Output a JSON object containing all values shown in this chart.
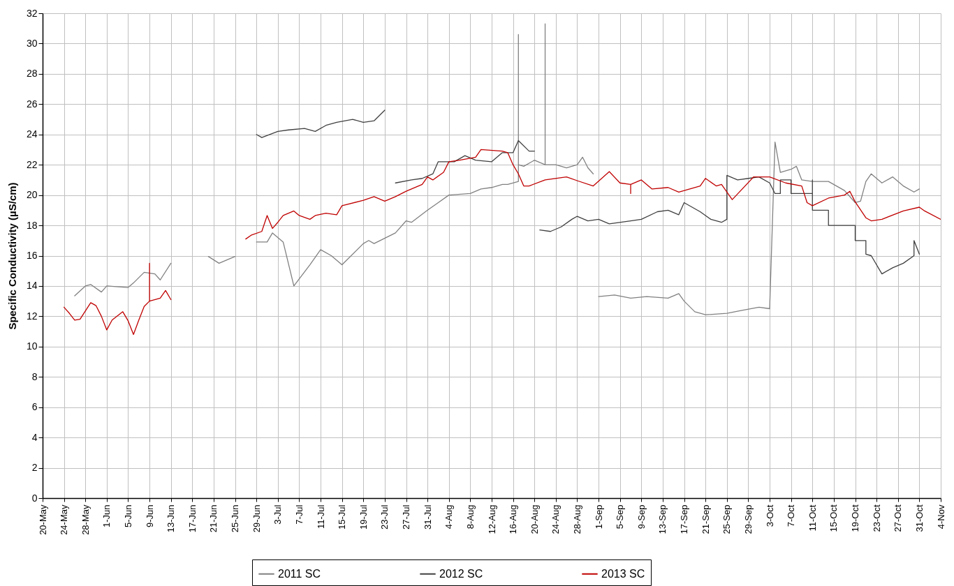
{
  "chart_data": {
    "type": "line",
    "ylabel": "Specific Conductivity (µS/cm)",
    "xlim": [
      "--05-20",
      "--11-04"
    ],
    "xticks": [
      {
        "value": "--05-20",
        "label": "20-May"
      },
      {
        "value": "--05-24",
        "label": "24-May"
      },
      {
        "value": "--05-28",
        "label": "28-May"
      },
      {
        "value": "--06-01",
        "label": "1-Jun"
      },
      {
        "value": "--06-05",
        "label": "5-Jun"
      },
      {
        "value": "--06-09",
        "label": "9-Jun"
      },
      {
        "value": "--06-13",
        "label": "13-Jun"
      },
      {
        "value": "--06-17",
        "label": "17-Jun"
      },
      {
        "value": "--06-21",
        "label": "21-Jun"
      },
      {
        "value": "--06-25",
        "label": "25-Jun"
      },
      {
        "value": "--06-29",
        "label": "29-Jun"
      },
      {
        "value": "--07-03",
        "label": "3-Jul"
      },
      {
        "value": "--07-07",
        "label": "7-Jul"
      },
      {
        "value": "--07-11",
        "label": "11-Jul"
      },
      {
        "value": "--07-15",
        "label": "15-Jul"
      },
      {
        "value": "--07-19",
        "label": "19-Jul"
      },
      {
        "value": "--07-23",
        "label": "23-Jul"
      },
      {
        "value": "--07-27",
        "label": "27-Jul"
      },
      {
        "value": "--07-31",
        "label": "31-Jul"
      },
      {
        "value": "--08-04",
        "label": "4-Aug"
      },
      {
        "value": "--08-08",
        "label": "8-Aug"
      },
      {
        "value": "--08-12",
        "label": "12-Aug"
      },
      {
        "value": "--08-16",
        "label": "16-Aug"
      },
      {
        "value": "--08-20",
        "label": "20-Aug"
      },
      {
        "value": "--08-24",
        "label": "24-Aug"
      },
      {
        "value": "--08-28",
        "label": "28-Aug"
      },
      {
        "value": "--09-01",
        "label": "1-Sep"
      },
      {
        "value": "--09-05",
        "label": "5-Sep"
      },
      {
        "value": "--09-09",
        "label": "9-Sep"
      },
      {
        "value": "--09-13",
        "label": "13-Sep"
      },
      {
        "value": "--09-17",
        "label": "17-Sep"
      },
      {
        "value": "--09-21",
        "label": "21-Sep"
      },
      {
        "value": "--09-25",
        "label": "25-Sep"
      },
      {
        "value": "--09-29",
        "label": "29-Sep"
      },
      {
        "value": "--10-03",
        "label": "3-Oct"
      },
      {
        "value": "--10-07",
        "label": "7-Oct"
      },
      {
        "value": "--10-11",
        "label": "11-Oct"
      },
      {
        "value": "--10-15",
        "label": "15-Oct"
      },
      {
        "value": "--10-19",
        "label": "19-Oct"
      },
      {
        "value": "--10-23",
        "label": "23-Oct"
      },
      {
        "value": "--10-27",
        "label": "27-Oct"
      },
      {
        "value": "--10-31",
        "label": "31-Oct"
      },
      {
        "value": "--11-04",
        "label": "4-Nov"
      }
    ],
    "ylim": [
      0,
      32
    ],
    "yticks": [
      0,
      2,
      4,
      6,
      8,
      10,
      12,
      14,
      16,
      18,
      20,
      22,
      24,
      26,
      28,
      30,
      32
    ],
    "grid": true,
    "legend": "bottom",
    "series": [
      {
        "name": "2011 SC",
        "color": "#808080",
        "x": [
          "--05-26",
          "--05-28",
          "--05-29",
          "--05-31",
          "--06-01",
          "--06-05",
          "--06-06",
          "--06-08",
          "--06-10",
          "--06-11",
          "--06-13",
          null,
          "--06-20",
          "--06-22",
          "--06-24",
          "--06-25",
          null,
          "--06-29",
          "--07-01",
          "--07-02",
          "--07-04",
          "--07-06",
          "--07-09",
          "--07-11",
          "--07-13",
          "--07-15",
          "--07-19",
          "--07-20",
          "--07-21",
          "--07-25",
          "--07-27",
          "--07-28",
          "--07-31",
          "--08-02",
          "--08-04",
          "--08-08",
          "--08-10",
          "--08-12",
          "--08-14",
          "--08-15",
          "--08-17",
          "--08-17",
          "--08-17",
          "--08-18",
          "--08-20",
          "--08-22",
          "--08-22",
          "--08-22",
          "--08-24",
          "--08-26",
          "--08-28",
          "--08-29",
          "--08-30",
          "--08-31",
          null,
          "--09-01",
          "--09-04",
          "--09-07",
          "--09-10",
          "--09-14",
          "--09-16",
          "--09-17",
          "--09-19",
          "--09-21",
          "--09-25",
          "--09-28",
          "--10-01",
          "--10-03",
          "--10-04",
          "--10-05",
          "--10-07",
          "--10-08",
          "--10-09",
          "--10-11",
          "--10-14",
          "--10-17",
          "--10-19",
          "--10-20",
          "--10-21",
          "--10-22",
          "--10-24",
          "--10-26",
          "--10-28",
          "--10-30",
          "--10-31"
        ],
        "values": [
          13.35,
          14.0,
          14.1,
          13.6,
          14.0,
          13.9,
          14.2,
          14.9,
          14.8,
          14.4,
          15.5,
          null,
          15.95,
          15.5,
          15.8,
          15.95,
          null,
          16.9,
          16.9,
          17.5,
          16.9,
          14.0,
          15.4,
          16.4,
          16.0,
          15.4,
          16.8,
          17.0,
          16.8,
          17.5,
          18.3,
          18.2,
          19.0,
          19.5,
          20.0,
          20.1,
          20.4,
          20.5,
          20.7,
          20.7,
          20.9,
          30.6,
          22.0,
          21.9,
          22.3,
          22.0,
          31.3,
          22.0,
          22.0,
          21.8,
          22.0,
          22.5,
          21.8,
          21.4,
          null,
          13.3,
          13.4,
          13.2,
          13.3,
          13.2,
          13.5,
          13.0,
          12.3,
          12.1,
          12.2,
          12.4,
          12.6,
          12.5,
          23.5,
          21.5,
          21.7,
          21.9,
          21.0,
          20.9,
          20.9,
          20.3,
          19.5,
          19.6,
          20.9,
          21.4,
          20.8,
          21.2,
          20.6,
          20.2,
          20.4
        ]
      },
      {
        "name": "2012 SC",
        "color": "#404040",
        "x": [
          "--06-29",
          "--06-30",
          "--07-03",
          "--07-05",
          "--07-08",
          "--07-10",
          "--07-12",
          "--07-14",
          "--07-17",
          "--07-19",
          "--07-21",
          "--07-23",
          null,
          "--07-25",
          "--07-28",
          "--07-30",
          "--08-01",
          "--08-02",
          "--08-05",
          "--08-07",
          "--08-09",
          "--08-12",
          "--08-14",
          "--08-16",
          "--08-17",
          "--08-19",
          "--08-20",
          null,
          "--08-21",
          "--08-23",
          "--08-25",
          "--08-27",
          "--08-28",
          "--08-30",
          "--09-01",
          "--09-03",
          "--09-07",
          "--09-09",
          "--09-12",
          "--09-14",
          "--09-16",
          "--09-17",
          "--09-20",
          "--09-22",
          "--09-24",
          "--09-25",
          "--09-25",
          "--09-27",
          "--09-29",
          "--10-01",
          "--10-03",
          "--10-04",
          "--10-05",
          "--10-05",
          "--10-07",
          "--10-07",
          "--10-11",
          "--10-11",
          "--10-11",
          "--10-11",
          "--10-14",
          "--10-14",
          "--10-19",
          "--10-19",
          "--10-21",
          "--10-21",
          "--10-22",
          "--10-24",
          "--10-26",
          "--10-28",
          "--10-30",
          "--10-30",
          "--10-31"
        ],
        "values": [
          24.0,
          23.8,
          24.2,
          24.3,
          24.4,
          24.2,
          24.6,
          24.8,
          25.0,
          24.8,
          24.9,
          25.6,
          null,
          20.8,
          21.0,
          21.1,
          21.4,
          22.2,
          22.2,
          22.6,
          22.3,
          22.2,
          22.8,
          22.8,
          23.6,
          22.9,
          22.9,
          null,
          17.7,
          17.6,
          17.9,
          18.4,
          18.6,
          18.3,
          18.4,
          18.1,
          18.3,
          18.4,
          18.9,
          19.0,
          18.7,
          19.5,
          18.9,
          18.4,
          18.2,
          18.4,
          21.3,
          21.0,
          21.1,
          21.2,
          20.8,
          20.1,
          20.1,
          21.0,
          21.0,
          20.1,
          20.1,
          21.0,
          20.1,
          19.0,
          19.0,
          18.0,
          18.0,
          17.0,
          17.0,
          16.1,
          16.0,
          14.8,
          15.2,
          15.5,
          16.0,
          17.0,
          16.1
        ]
      },
      {
        "name": "2013 SC",
        "color": "#c00000",
        "x": [
          "--05-24",
          "--05-25",
          "--05-26",
          "--05-27",
          "--05-29",
          "--05-30",
          "--05-31",
          "--06-01",
          "--06-02",
          "--06-04",
          "--06-05",
          "--06-06",
          "--06-07",
          "--06-08",
          "--06-09",
          "--06-09",
          "--06-09",
          "--06-11",
          "--06-12",
          "--06-13",
          null,
          "--06-27",
          "--06-28",
          "--06-30",
          "--07-01",
          "--07-02",
          "--07-03",
          "--07-04",
          "--07-06",
          "--07-07",
          "--07-09",
          "--07-10",
          "--07-12",
          "--07-14",
          "--07-15",
          "--07-19",
          "--07-21",
          "--07-23",
          "--07-25",
          "--07-27",
          "--07-30",
          "--07-31",
          "--08-01",
          "--08-03",
          "--08-04",
          "--08-06",
          "--08-09",
          "--08-10",
          "--08-14",
          "--08-15",
          "--08-16",
          "--08-17",
          "--08-18",
          "--08-19",
          "--08-22",
          "--08-26",
          "--08-28",
          "--08-31",
          "--09-03",
          "--09-05",
          "--09-07",
          "--09-07",
          "--09-07",
          "--09-09",
          "--09-11",
          "--09-14",
          "--09-16",
          "--09-20",
          "--09-21",
          "--09-23",
          "--09-24",
          "--09-26",
          "--09-30",
          "--10-03",
          "--10-06",
          "--10-09",
          "--10-10",
          "--10-11",
          "--10-14",
          "--10-17",
          "--10-18",
          "--10-19",
          "--10-21",
          "--10-22",
          "--10-24",
          "--10-28",
          "--10-31",
          "--11-01",
          "--11-04"
        ],
        "values": [
          12.6,
          12.2,
          11.75,
          11.8,
          12.9,
          12.7,
          12.0,
          11.1,
          11.75,
          12.3,
          11.7,
          10.8,
          11.75,
          12.65,
          13.0,
          15.5,
          13.0,
          13.2,
          13.7,
          13.1,
          null,
          17.1,
          17.35,
          17.6,
          18.65,
          17.8,
          18.2,
          18.65,
          18.95,
          18.65,
          18.4,
          18.65,
          18.8,
          18.7,
          19.3,
          19.65,
          19.9,
          19.6,
          19.9,
          20.25,
          20.7,
          21.2,
          21.0,
          21.5,
          22.2,
          22.3,
          22.5,
          23.0,
          22.9,
          22.8,
          22.0,
          21.4,
          20.6,
          20.6,
          21.0,
          21.2,
          20.95,
          20.6,
          21.55,
          20.8,
          20.7,
          20.1,
          20.7,
          21.0,
          20.4,
          20.5,
          20.2,
          20.6,
          21.1,
          20.6,
          20.7,
          19.7,
          21.2,
          21.2,
          20.8,
          20.6,
          19.5,
          19.3,
          19.8,
          20.0,
          20.25,
          19.55,
          18.5,
          18.3,
          18.4,
          18.95,
          19.2,
          18.95,
          18.4
        ]
      }
    ]
  }
}
